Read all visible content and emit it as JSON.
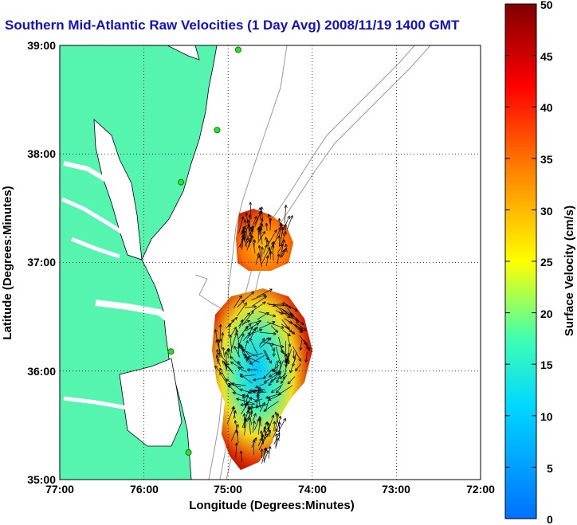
{
  "title": "Southern Mid-Atlantic Raw Velocities (1 Day Avg) 2008/11/19 1400 GMT",
  "map": {
    "xlabel": "Longitude (Degrees:Minutes)",
    "ylabel": "Latitude (Degrees:Minutes)",
    "x_ticks": [
      "77:00",
      "76:00",
      "75:00",
      "74:00",
      "73:00",
      "72:00"
    ],
    "y_ticks": [
      "39:00",
      "38:00",
      "37:00",
      "36:00",
      "35:00"
    ],
    "lon_range": [
      -77,
      -72
    ],
    "lat_range": [
      35,
      39
    ],
    "land_color": "#55f5b0",
    "grid": true
  },
  "colorbar": {
    "label": "Surface Velocity (cm/s)",
    "ticks": [
      "50",
      "45",
      "40",
      "35",
      "30",
      "25",
      "20",
      "15",
      "10",
      "5",
      "0"
    ],
    "range": [
      0,
      50
    ],
    "colormap": "jet"
  },
  "stations": [
    {
      "lon": -74.88,
      "lat": 38.96
    },
    {
      "lon": -75.13,
      "lat": 38.22
    },
    {
      "lon": -75.56,
      "lat": 37.74
    },
    {
      "lon": -75.68,
      "lat": 36.18
    },
    {
      "lon": -75.47,
      "lat": 35.25
    }
  ]
}
